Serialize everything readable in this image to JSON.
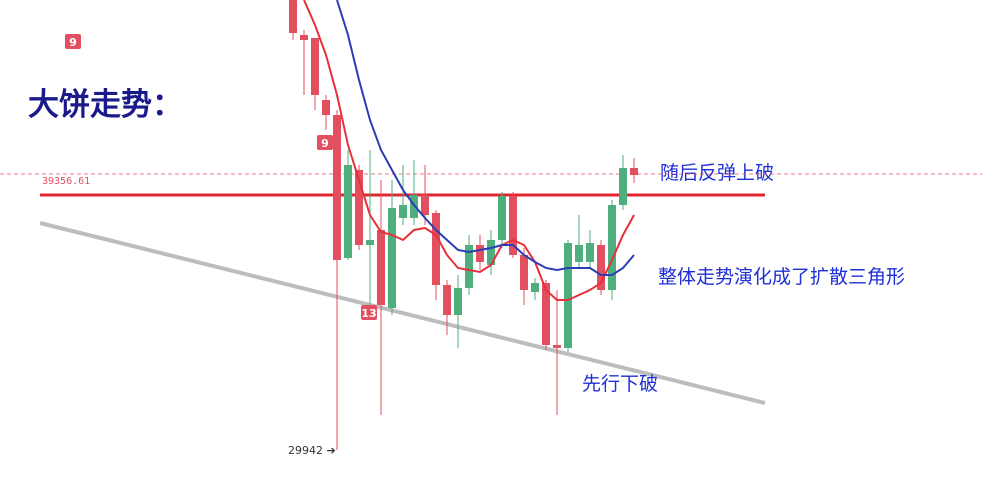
{
  "chart_data": {
    "type": "candlestick",
    "title": "大饼走势：",
    "annotations": [
      "随后反弹上破",
      "整体走势演化成了扩散三角形",
      "先行下破"
    ],
    "categories": [
      null,
      null,
      null,
      null,
      null,
      null,
      null,
      null,
      null,
      null,
      null,
      null,
      null,
      null,
      null,
      null,
      null,
      null,
      null,
      null,
      null,
      null,
      null,
      null,
      null,
      null,
      null,
      null,
      null,
      null,
      null,
      null
    ],
    "open": [
      45292,
      44098,
      43996,
      41881,
      41369,
      36492,
      39493,
      36935,
      37447,
      34786,
      37856,
      37856,
      38641,
      38027,
      35571,
      34546,
      35469,
      36935,
      36253,
      37106,
      38607,
      36594,
      35332,
      35639,
      33524,
      33422,
      36355,
      36355,
      36935,
      35400,
      38300,
      39562
    ],
    "high": [
      45292,
      44269,
      43996,
      42052,
      41540,
      40176,
      39664,
      40176,
      39152,
      39152,
      39664,
      39834,
      39664,
      38129,
      35741,
      35912,
      37276,
      37276,
      37447,
      38743,
      38743,
      36833,
      35810,
      35741,
      35400,
      37106,
      37958,
      37447,
      37106,
      38470,
      40005,
      39903
    ],
    "low": [
      43928,
      42052,
      41540,
      40858,
      29942,
      36423,
      36765,
      34888,
      31136,
      34546,
      37617,
      37617,
      37617,
      35059,
      33865,
      33422,
      35230,
      36082,
      35912,
      36833,
      36492,
      34888,
      35059,
      33354,
      31136,
      33285,
      36151,
      36151,
      35230,
      35059,
      38129,
      39050
    ],
    "close": [
      44166,
      43928,
      42052,
      41369,
      36423,
      39664,
      36935,
      37106,
      34888,
      38197,
      38300,
      38641,
      37958,
      35571,
      34546,
      35469,
      36935,
      36355,
      37106,
      38607,
      36594,
      35400,
      35639,
      33524,
      33422,
      37003,
      36935,
      37003,
      35400,
      38300,
      39562,
      39323
    ],
    "up_color": "#4fae7e",
    "down_color": "#e2505f",
    "ma": [
      {
        "color": "#e8303a",
        "values": [
          null,
          45292,
          44439,
          43416,
          42052,
          40346,
          39152,
          37958,
          37378,
          37276,
          37106,
          37447,
          37515,
          37276,
          36594,
          36151,
          36082,
          36014,
          36253,
          36935,
          37106,
          36935,
          36355,
          35400,
          35059,
          35059,
          35230,
          35400,
          35639,
          36423,
          37276,
          37958
        ]
      },
      {
        "color": "#2b3db5",
        "values": [
          null,
          null,
          null,
          null,
          45292,
          44098,
          42563,
          41199,
          40176,
          39493,
          38811,
          38300,
          37856,
          37447,
          37106,
          36765,
          36696,
          36765,
          36833,
          36935,
          36935,
          36594,
          36355,
          36151,
          36082,
          36151,
          36151,
          36151,
          35912,
          35912,
          36151,
          36594
        ]
      }
    ],
    "last_price": 39356.61,
    "low_marker": {
      "value": 29942,
      "label": "29942 ➔"
    },
    "markers": [
      9,
      9,
      13
    ],
    "ylim": [
      29021,
      45292
    ]
  }
}
